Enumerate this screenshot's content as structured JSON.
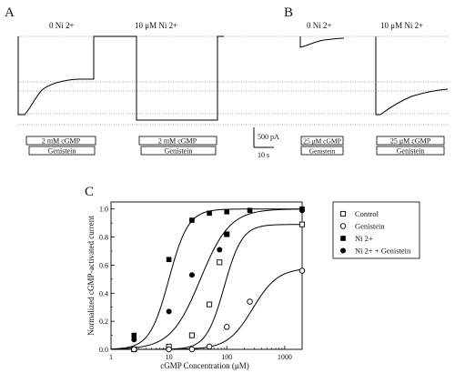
{
  "panels": {
    "A": {
      "letter": "A",
      "conditions": [
        "0 Ni 2+",
        "10 μM Ni 2+"
      ],
      "stim_bars": [
        "2 mM cGMP",
        "2 mM cGMP"
      ],
      "drug_bars": [
        "Genistein",
        "Genistein"
      ]
    },
    "B": {
      "letter": "B",
      "conditions": [
        "0 Ni 2+",
        "10 μM Ni 2+"
      ],
      "stim_bars": [
        "25 μM cGMP",
        "25 μM cGMP"
      ],
      "drug_bars": [
        "Genistein",
        "Genistein"
      ]
    },
    "scale": {
      "current": "500 pA",
      "time": "10 s"
    },
    "C": {
      "letter": "C"
    }
  },
  "chart_data": {
    "type": "scatter",
    "xlabel": "cGMP Concentration (μM)",
    "ylabel": "Normalized cGMP-activated current",
    "x_scale": "log",
    "xlim": [
      1,
      2000
    ],
    "ylim": [
      0,
      1.05
    ],
    "x_ticks": [
      {
        "value": 1,
        "label": "1"
      },
      {
        "value": 10,
        "label": "10"
      },
      {
        "value": 100,
        "label": "100"
      },
      {
        "value": 1000,
        "label": "1000"
      }
    ],
    "y_ticks": [
      {
        "value": 0,
        "label": "0.0"
      },
      {
        "value": 0.2,
        "label": "0.2"
      },
      {
        "value": 0.4,
        "label": "0.4"
      },
      {
        "value": 0.6,
        "label": "0.6"
      },
      {
        "value": 0.8,
        "label": "0.8"
      },
      {
        "value": 1.0,
        "label": "1.0"
      }
    ],
    "legend_position": "right",
    "series": [
      {
        "name": "Control",
        "marker": "open-square",
        "fit": {
          "k": 90,
          "n": 2.8,
          "max": 0.89
        },
        "points": [
          [
            2.5,
            0.0
          ],
          [
            10,
            0.02
          ],
          [
            25,
            0.1
          ],
          [
            50,
            0.32
          ],
          [
            75,
            0.62
          ],
          [
            100,
            0.82
          ],
          [
            2000,
            0.89
          ]
        ]
      },
      {
        "name": "Genistein",
        "marker": "open-circle",
        "fit": {
          "k": 280,
          "n": 2.0,
          "max": 0.58
        },
        "points": [
          [
            2.5,
            0.0
          ],
          [
            10,
            0.0
          ],
          [
            25,
            0.0
          ],
          [
            50,
            0.02
          ],
          [
            100,
            0.16
          ],
          [
            250,
            0.34
          ],
          [
            2000,
            0.56
          ]
        ]
      },
      {
        "name": "Ni 2+",
        "marker": "filled-square",
        "fit": {
          "k": 10,
          "n": 2.6,
          "max": 1.0
        },
        "points": [
          [
            2.5,
            0.1
          ],
          [
            10,
            0.64
          ],
          [
            25,
            0.92
          ],
          [
            50,
            0.97
          ],
          [
            100,
            0.98
          ],
          [
            250,
            0.99
          ],
          [
            2000,
            1.0
          ]
        ]
      },
      {
        "name": "Ni 2+ + Genistein",
        "marker": "filled-circle",
        "fit": {
          "k": 35,
          "n": 1.7,
          "max": 1.0
        },
        "points": [
          [
            2.5,
            0.07
          ],
          [
            10,
            0.27
          ],
          [
            25,
            0.53
          ],
          [
            75,
            0.71
          ],
          [
            100,
            0.82
          ],
          [
            2000,
            0.99
          ]
        ]
      }
    ]
  }
}
